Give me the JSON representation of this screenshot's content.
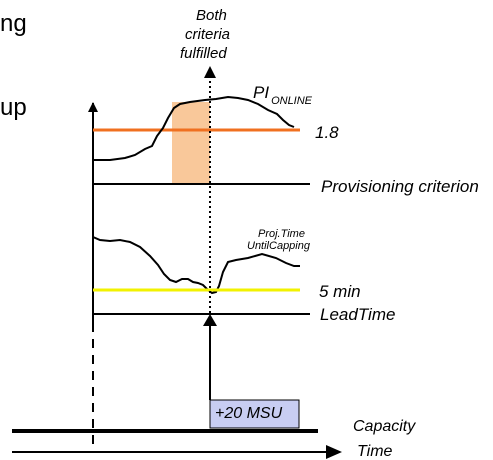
{
  "left_fragments": {
    "line1": "ng",
    "line2": "up"
  },
  "annotation": {
    "line1": "Both",
    "line2": "criteria",
    "line3": "fulfilled"
  },
  "pi_label": {
    "main": "PI",
    "sub": "ONLINE"
  },
  "labels": {
    "threshold_pi": "1.8",
    "provisioning": "Provisioning criterion",
    "proj_time_line1": "Proj.Time",
    "proj_time_line2": "UntilCapping",
    "five_min": "5 min",
    "lead_time": "LeadTime",
    "msu_box": "+20 MSU",
    "capacity": "Capacity",
    "time": "Time"
  },
  "colors": {
    "pi_threshold": "#f07020",
    "shaded_region": "#f9c89a",
    "time_threshold": "#f2f200",
    "msu_box_fill": "#c8cdf2"
  }
}
